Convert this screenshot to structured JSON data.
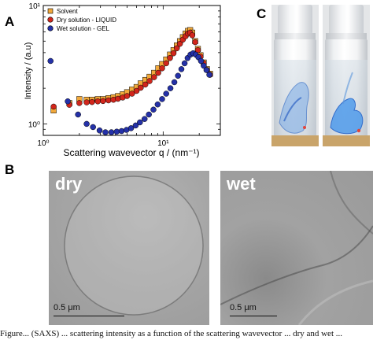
{
  "panels": {
    "a": "A",
    "b": "B",
    "c": "C"
  },
  "chart_data": {
    "type": "scatter",
    "xscale": "log",
    "yscale": "log",
    "xlabel": "Scattering wavevector q / (nm⁻¹)",
    "ylabel": "Intensity / (a.u)",
    "xlim": [
      1,
      30
    ],
    "ylim": [
      0.8,
      10
    ],
    "x_ticks": [
      {
        "value": 1,
        "label": "10⁰"
      },
      {
        "value": 10,
        "label": "10¹"
      }
    ],
    "y_ticks": [
      {
        "value": 1,
        "label": "10⁰"
      },
      {
        "value": 10,
        "label": "10¹"
      }
    ],
    "legend_position": "top-left",
    "series": [
      {
        "name": "Solvent",
        "marker": "square",
        "color": "#f2a93b",
        "x": [
          1.22,
          1.65,
          2.0,
          2.3,
          2.55,
          2.85,
          3.15,
          3.5,
          3.85,
          4.2,
          4.6,
          5.0,
          5.5,
          6.0,
          6.5,
          7.1,
          7.7,
          8.4,
          9.1,
          9.8,
          10.6,
          11.4,
          12.2,
          13.0,
          13.8,
          14.6,
          15.4,
          16.1,
          16.8,
          17.5,
          18.5,
          19.5,
          20.5,
          21.8,
          23.2,
          24.6
        ],
        "y": [
          1.3,
          1.5,
          1.62,
          1.6,
          1.6,
          1.62,
          1.62,
          1.65,
          1.68,
          1.72,
          1.78,
          1.85,
          1.95,
          2.05,
          2.2,
          2.35,
          2.5,
          2.7,
          2.95,
          3.2,
          3.5,
          3.85,
          4.2,
          4.6,
          5.0,
          5.4,
          5.8,
          6.1,
          6.2,
          5.9,
          5.0,
          4.3,
          3.8,
          3.3,
          2.9,
          2.65
        ]
      },
      {
        "name": "Dry solution - LIQUID",
        "marker": "circle",
        "color": "#d1261c",
        "x": [
          1.22,
          1.65,
          2.0,
          2.3,
          2.55,
          2.85,
          3.15,
          3.5,
          3.85,
          4.2,
          4.6,
          5.0,
          5.5,
          6.0,
          6.5,
          7.1,
          7.7,
          8.4,
          9.1,
          9.8,
          10.6,
          11.4,
          12.2,
          13.0,
          13.8,
          14.6,
          15.4,
          16.1,
          16.8,
          17.5,
          18.5,
          19.5,
          20.5,
          21.8,
          23.2,
          24.6
        ],
        "y": [
          1.4,
          1.45,
          1.5,
          1.52,
          1.53,
          1.55,
          1.56,
          1.58,
          1.6,
          1.63,
          1.67,
          1.72,
          1.8,
          1.9,
          2.02,
          2.15,
          2.3,
          2.48,
          2.7,
          2.95,
          3.25,
          3.6,
          3.95,
          4.35,
          4.75,
          5.15,
          5.5,
          5.8,
          5.9,
          5.6,
          4.9,
          4.2,
          3.7,
          3.25,
          2.85,
          2.6
        ]
      },
      {
        "name": "Wet solution - GEL",
        "marker": "circle",
        "color": "#2431a8",
        "x": [
          1.15,
          1.6,
          1.95,
          2.3,
          2.6,
          2.95,
          3.3,
          3.7,
          4.1,
          4.5,
          4.95,
          5.4,
          5.9,
          6.4,
          7.0,
          7.6,
          8.3,
          9.0,
          9.8,
          10.6,
          11.5,
          12.4,
          13.3,
          14.2,
          15.1,
          16.0,
          16.9,
          17.8,
          18.7,
          19.7,
          20.7,
          21.8,
          23.0,
          24.3
        ],
        "y": [
          3.4,
          1.55,
          1.2,
          1.0,
          0.94,
          0.88,
          0.85,
          0.85,
          0.86,
          0.87,
          0.89,
          0.92,
          0.97,
          1.03,
          1.1,
          1.2,
          1.32,
          1.46,
          1.62,
          1.8,
          2.0,
          2.25,
          2.55,
          2.9,
          3.25,
          3.6,
          3.85,
          3.95,
          3.85,
          3.65,
          3.4,
          3.1,
          2.85,
          2.6
        ]
      }
    ]
  },
  "micrographs": [
    {
      "label": "dry",
      "scale": "0.5 μm"
    },
    {
      "label": "wet",
      "scale": "0.5 μm"
    }
  ],
  "caption": "Figure... (SAXS) ... scattering intensity as a function of the scattering wavevector ... dry and wet ..."
}
